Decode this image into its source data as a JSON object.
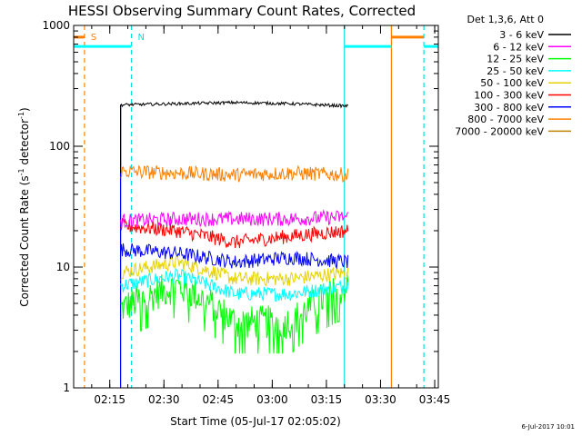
{
  "chart_data": {
    "type": "line",
    "title": "HESSI Observing Summary Count Rates, Corrected",
    "xlabel": "Start Time (05-Jul-17 02:05:02)",
    "ylabel_main": "Corrected Count Rate (s",
    "ylabel_sup": "-1",
    "ylabel_mid": " detector",
    "ylabel_sup2": "-1",
    "ylabel_end": ")",
    "ylog": true,
    "ylim": [
      1,
      1000
    ],
    "xlim_min": [
      125,
      226
    ],
    "x_ticks": [
      {
        "t": 135,
        "label": "02:15"
      },
      {
        "t": 150,
        "label": "02:30"
      },
      {
        "t": 165,
        "label": "02:45"
      },
      {
        "t": 180,
        "label": "03:00"
      },
      {
        "t": 195,
        "label": "03:15"
      },
      {
        "t": 210,
        "label": "03:30"
      },
      {
        "t": 225,
        "label": "03:45"
      }
    ],
    "y_ticks": [
      {
        "v": 1,
        "label": "1"
      },
      {
        "v": 10,
        "label": "10"
      },
      {
        "v": 100,
        "label": "100"
      },
      {
        "v": 1000,
        "label": "1000"
      }
    ],
    "legend": {
      "header": "Det 1,3,6, Att 0",
      "entries": [
        {
          "label": "3 - 6 keV",
          "color": "#000000"
        },
        {
          "label": "6 - 12 keV",
          "color": "#ff00ff"
        },
        {
          "label": "12 - 25 keV",
          "color": "#00ff00"
        },
        {
          "label": "25 - 50 keV",
          "color": "#00ffff"
        },
        {
          "label": "50 - 100 keV",
          "color": "#e6d200"
        },
        {
          "label": "100 - 300 keV",
          "color": "#ff0000"
        },
        {
          "label": "300 - 800 keV",
          "color": "#0000ff"
        },
        {
          "label": "800 - 7000 keV",
          "color": "#ff8000"
        },
        {
          "label": "7000 - 20000 keV",
          "color": "#c08000"
        }
      ]
    },
    "data_start_min": 138,
    "data_end_min": 201,
    "series": [
      {
        "color": "#000000",
        "values": [
          220,
          225,
          230,
          225,
          215
        ]
      },
      {
        "color": "#ff8000",
        "values": [
          62,
          60,
          58,
          60,
          58
        ]
      },
      {
        "color": "#ff00ff",
        "values": [
          24,
          25,
          25,
          25,
          26
        ]
      },
      {
        "color": "#ff0000",
        "values": [
          22,
          20,
          16,
          18,
          20
        ]
      },
      {
        "color": "#0000ff",
        "values": [
          14,
          13,
          11,
          12,
          11
        ]
      },
      {
        "color": "#e6d200",
        "values": [
          9,
          11,
          8,
          8,
          9
        ]
      },
      {
        "color": "#00ffff",
        "values": [
          7,
          8.5,
          6,
          6,
          7
        ]
      },
      {
        "color": "#00ff00",
        "values": [
          4.5,
          7,
          3.5,
          3.5,
          7
        ]
      }
    ],
    "annotations": [
      {
        "t": 128,
        "color": "#ff8000",
        "dashed": true,
        "label": "S"
      },
      {
        "t": 141,
        "color": "#00e0e0",
        "dashed": true,
        "label": "N"
      },
      {
        "t": 200,
        "color": "#00e0e0",
        "dashed": false,
        "label": ""
      },
      {
        "t": 213,
        "color": "#ff8000",
        "dashed": false,
        "label": ""
      },
      {
        "t": 222,
        "color": "#00e0e0",
        "dashed": true,
        "label": ""
      }
    ],
    "detector_start_min": 138,
    "bars": [
      {
        "t0": 125,
        "t1": 128,
        "v": 800,
        "color": "#ff8000"
      },
      {
        "t0": 125,
        "t1": 141,
        "v": 670,
        "color": "#00ffff"
      },
      {
        "t0": 200,
        "t1": 213,
        "v": 670,
        "color": "#00ffff"
      },
      {
        "t0": 213,
        "t1": 222,
        "v": 800,
        "color": "#ff8000"
      },
      {
        "t0": 222,
        "t1": 226,
        "v": 670,
        "color": "#00ffff"
      }
    ],
    "timestamp": "6-Jul-2017 10:01"
  }
}
